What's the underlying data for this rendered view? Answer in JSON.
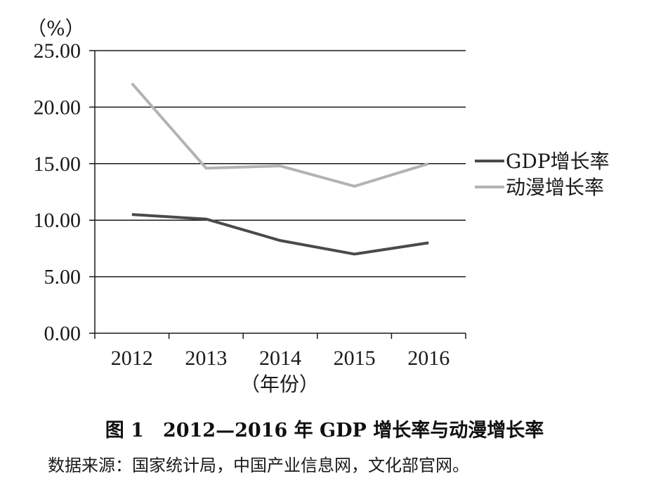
{
  "chart_data": {
    "type": "line",
    "y_unit": "（%）",
    "xlabel": "（年份）",
    "categories": [
      "2012",
      "2013",
      "2014",
      "2015",
      "2016"
    ],
    "ylim": [
      0,
      25
    ],
    "y_ticks": [
      "0.00",
      "5.00",
      "10.00",
      "15.00",
      "20.00",
      "25.00"
    ],
    "grid": true,
    "legend_position": "right",
    "series": [
      {
        "name": "GDP增长率",
        "color": "#4a4a4a",
        "values": [
          10.5,
          10.1,
          8.2,
          7.0,
          8.0
        ]
      },
      {
        "name": "动漫增长率",
        "color": "#b3b3b3",
        "values": [
          22.1,
          14.6,
          14.8,
          13.0,
          15.0
        ]
      }
    ]
  },
  "caption": "图 1　2012—2016 年 GDP 增长率与动漫增长率",
  "source": "数据来源：国家统计局，中国产业信息网，文化部官网。"
}
